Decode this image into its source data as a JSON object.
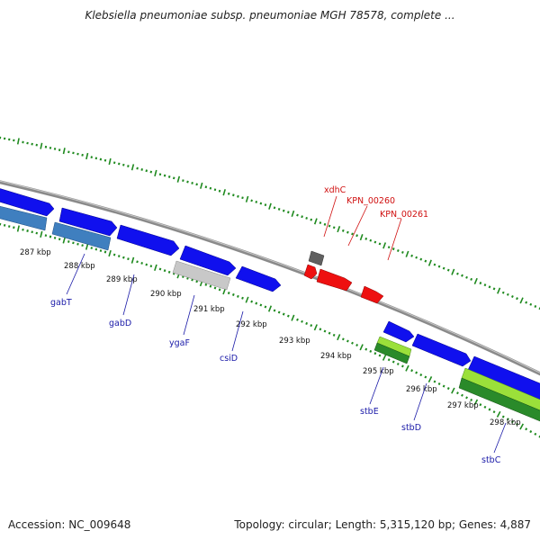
{
  "title": "Klebsiella pneumoniae subsp. pneumoniae MGH 78578, complete ...",
  "footer": {
    "accession": "Accession: NC_009648",
    "stats": "Topology: circular; Length: 5,315,120 bp; Genes: 4,887"
  },
  "colors": {
    "forward_gene": "#1010ee",
    "reverse_gene": "#3f7fbf",
    "gray_gene": "#c0c0c0",
    "dark_gene": "#606060",
    "red_gene": "#ee1010",
    "green_light": "#99e033",
    "green_dark": "#2a8a2a",
    "backbone": "#8a8a8a",
    "ticks": "#1f8a1f",
    "label_blue": "#1a1aa8",
    "label_red": "#d01010"
  },
  "kbp_labels": [
    "287 kbp",
    "288 kbp",
    "289 kbp",
    "290 kbp",
    "291 kbp",
    "292 kbp",
    "293 kbp",
    "294 kbp",
    "295 kbp",
    "296 kbp",
    "297 kbp",
    "298 kbp"
  ],
  "gene_labels": [
    "gabT",
    "gabD",
    "ygaF",
    "csiD",
    "stbE",
    "stbD",
    "stbC"
  ],
  "red_labels": [
    "xdhC",
    "KPN_00260",
    "KPN_00261"
  ]
}
